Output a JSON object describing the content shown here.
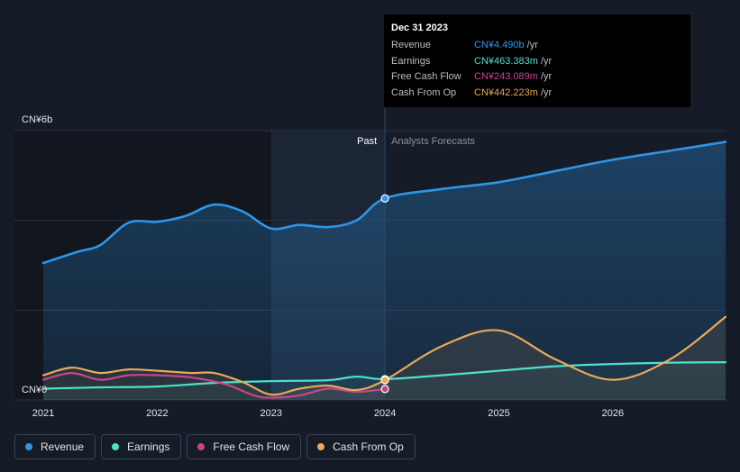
{
  "chart_data": {
    "type": "line",
    "y_axis": {
      "top_label": "CN¥6b",
      "bottom_label": "CN¥0",
      "ylim": [
        0,
        6
      ]
    },
    "x_axis": {
      "ticks": [
        "2021",
        "2022",
        "2023",
        "2024",
        "2025",
        "2026"
      ],
      "xlim": [
        2021.0,
        2026.99
      ]
    },
    "divider": {
      "x": 2024.0,
      "past_label": "Past",
      "forecast_label": "Analysts Forecasts"
    },
    "shaded_band": {
      "from": 2023.0,
      "to": 2024.0
    },
    "series": [
      {
        "name": "Revenue",
        "color": "#2f95e6",
        "points": [
          [
            2021.0,
            3.05
          ],
          [
            2021.3,
            3.3
          ],
          [
            2021.5,
            3.45
          ],
          [
            2021.75,
            3.95
          ],
          [
            2022.0,
            3.97
          ],
          [
            2022.25,
            4.1
          ],
          [
            2022.5,
            4.35
          ],
          [
            2022.75,
            4.2
          ],
          [
            2023.0,
            3.82
          ],
          [
            2023.25,
            3.9
          ],
          [
            2023.5,
            3.85
          ],
          [
            2023.75,
            4.0
          ],
          [
            2024.0,
            4.49
          ]
        ],
        "forecast": [
          [
            2024.0,
            4.49
          ],
          [
            2024.5,
            4.7
          ],
          [
            2025.0,
            4.85
          ],
          [
            2025.5,
            5.1
          ],
          [
            2026.0,
            5.35
          ],
          [
            2026.5,
            5.55
          ],
          [
            2026.99,
            5.75
          ]
        ]
      },
      {
        "name": "Earnings",
        "color": "#4fe0c8",
        "points": [
          [
            2021.0,
            0.25
          ],
          [
            2021.5,
            0.28
          ],
          [
            2022.0,
            0.3
          ],
          [
            2022.5,
            0.38
          ],
          [
            2023.0,
            0.42
          ],
          [
            2023.5,
            0.44
          ],
          [
            2023.75,
            0.52
          ],
          [
            2024.0,
            0.463
          ]
        ],
        "forecast": [
          [
            2024.0,
            0.463
          ],
          [
            2024.5,
            0.55
          ],
          [
            2025.0,
            0.65
          ],
          [
            2025.5,
            0.75
          ],
          [
            2026.0,
            0.8
          ],
          [
            2026.5,
            0.83
          ],
          [
            2026.99,
            0.84
          ]
        ]
      },
      {
        "name": "Free Cash Flow",
        "color": "#c8458a",
        "points": [
          [
            2021.0,
            0.45
          ],
          [
            2021.25,
            0.6
          ],
          [
            2021.5,
            0.45
          ],
          [
            2021.75,
            0.55
          ],
          [
            2022.0,
            0.55
          ],
          [
            2022.3,
            0.5
          ],
          [
            2022.6,
            0.35
          ],
          [
            2022.85,
            0.1
          ],
          [
            2023.0,
            0.05
          ],
          [
            2023.25,
            0.1
          ],
          [
            2023.5,
            0.25
          ],
          [
            2023.75,
            0.18
          ],
          [
            2024.0,
            0.243
          ]
        ],
        "forecast": []
      },
      {
        "name": "Cash From Op",
        "color": "#e8a95a",
        "points": [
          [
            2021.0,
            0.55
          ],
          [
            2021.25,
            0.72
          ],
          [
            2021.5,
            0.6
          ],
          [
            2021.75,
            0.68
          ],
          [
            2022.0,
            0.65
          ],
          [
            2022.3,
            0.6
          ],
          [
            2022.5,
            0.6
          ],
          [
            2022.75,
            0.4
          ],
          [
            2023.0,
            0.12
          ],
          [
            2023.25,
            0.25
          ],
          [
            2023.5,
            0.32
          ],
          [
            2023.75,
            0.22
          ],
          [
            2024.0,
            0.442
          ]
        ],
        "forecast": [
          [
            2024.0,
            0.442
          ],
          [
            2024.5,
            1.2
          ],
          [
            2025.0,
            1.55
          ],
          [
            2025.5,
            0.9
          ],
          [
            2026.0,
            0.45
          ],
          [
            2026.5,
            0.9
          ],
          [
            2026.99,
            1.85
          ]
        ]
      }
    ]
  },
  "tooltip": {
    "date": "Dec 31 2023",
    "rows": [
      {
        "label": "Revenue",
        "value": "CN¥4.490b",
        "unit": "/yr",
        "color": "#2f95e6"
      },
      {
        "label": "Earnings",
        "value": "CN¥463.383m",
        "unit": "/yr",
        "color": "#4fe0c8"
      },
      {
        "label": "Free Cash Flow",
        "value": "CN¥243.089m",
        "unit": "/yr",
        "color": "#c8458a"
      },
      {
        "label": "Cash From Op",
        "value": "CN¥442.223m",
        "unit": "/yr",
        "color": "#e8a95a"
      }
    ]
  },
  "legend": [
    {
      "label": "Revenue",
      "color": "#2f95e6"
    },
    {
      "label": "Earnings",
      "color": "#4fe0c8"
    },
    {
      "label": "Free Cash Flow",
      "color": "#c8458a"
    },
    {
      "label": "Cash From Op",
      "color": "#e8a95a"
    }
  ]
}
